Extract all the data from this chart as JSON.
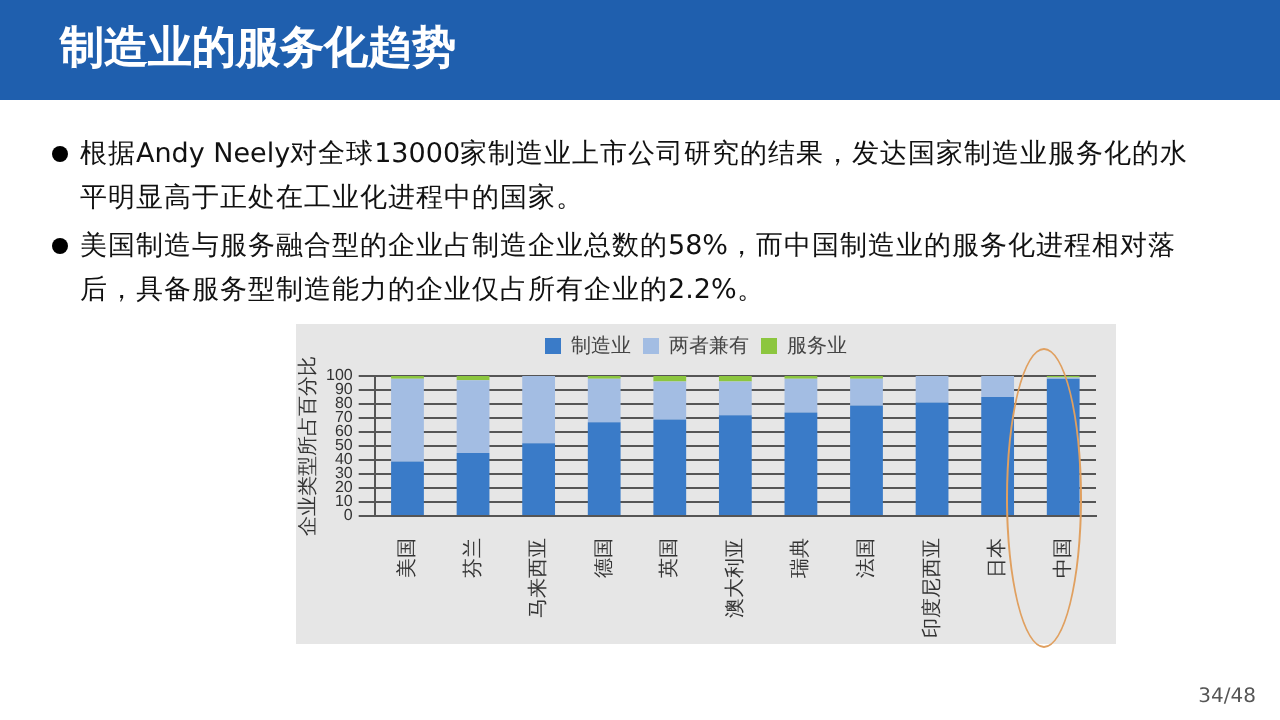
{
  "chart_data": {
    "type": "bar",
    "stacked": true,
    "title": "制造业的服务化趋势",
    "annotations": [
      "根据Andy Neely对全球13000家制造业上市公司研究的结果，发达国家制造业服务化的水平明显高于正处在工业化进程中的国家。",
      "美国制造与服务融合型的企业占制造企业总数的58%，而中国制造业的服务化进程相对落后，具备服务型制造能力的企业仅占所有企业的2.2%。",
      "34/48"
    ],
    "ylabel": "企业类型所占百分比",
    "categories": [
      "美国",
      "芬兰",
      "马来西亚",
      "德国",
      "英国",
      "澳大利亚",
      "瑞典",
      "法国",
      "印度尼西亚",
      "日本",
      "中国"
    ],
    "series": [
      {
        "name": "制造业",
        "color": "#3a7bc8",
        "values": [
          39,
          45,
          52,
          67,
          69,
          72,
          74,
          79,
          81,
          85,
          98
        ]
      },
      {
        "name": "两者兼有",
        "color": "#a3bde3",
        "values": [
          59,
          52,
          48,
          31,
          27,
          24,
          24,
          19,
          19,
          15,
          1
        ]
      },
      {
        "name": "服务业",
        "color": "#8cc63f",
        "values": [
          2,
          3,
          0,
          2,
          4,
          4,
          2,
          2,
          0,
          0,
          1
        ]
      }
    ],
    "ylim": [
      0,
      100
    ],
    "yticks": [
      0,
      10,
      20,
      30,
      40,
      50,
      60,
      70,
      80,
      90,
      100
    ],
    "grid": "y",
    "legend": "top"
  }
}
